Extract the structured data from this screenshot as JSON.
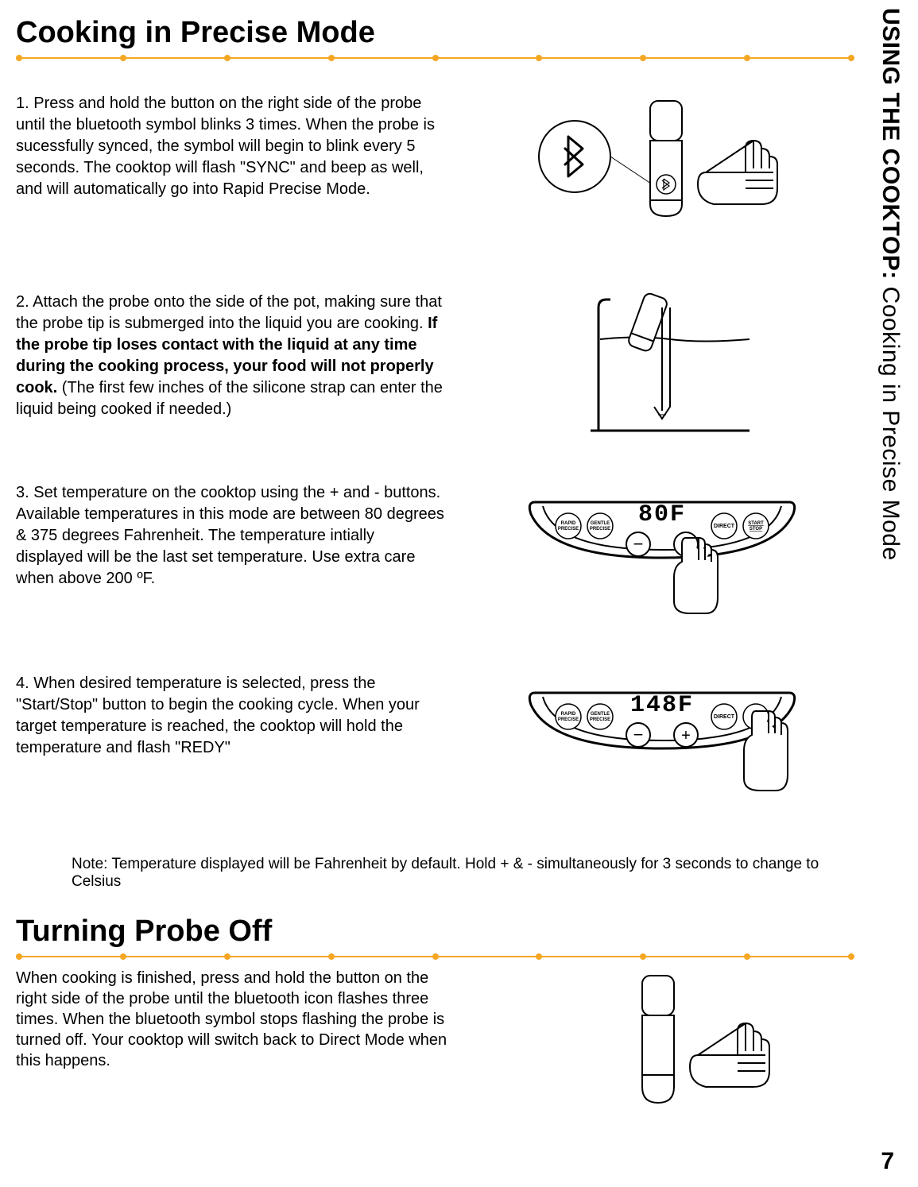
{
  "side_title_bold": "USING THE COOKTOP:",
  "side_title_rest": " Cooking in Precise Mode",
  "heading1": "Cooking in Precise Mode",
  "rule": {
    "color": "#f5a623",
    "dot_count": 9
  },
  "steps": [
    {
      "text_plain_before": "1. Press and hold the button on the right side of the probe until the bluetooth symbol blinks 3 times. When the probe is sucessfully synced, the symbol will begin to blink every 5 seconds. The cooktop will flash \"SYNC\" and beep as well, and will automatically go into Rapid Precise Mode.",
      "bold": "",
      "text_plain_after": ""
    },
    {
      "text_plain_before": "2.  Attach the probe onto the side of the pot, making sure that the probe tip is submerged into the liquid you are cooking. ",
      "bold": "If the probe tip loses contact with the liquid at any time during the cooking process, your food will not properly cook.",
      "text_plain_after": " (The first few inches of the silicone strap can enter the liquid being cooked if needed.)"
    },
    {
      "text_plain_before": "3.  Set temperature on the cooktop using the + and - buttons. Available temperatures in this mode are between 80 degrees & 375 degrees Fahrenheit. The temperature intially displayed will be the last set temperature. Use extra care when above 200 ºF.",
      "bold": "",
      "text_plain_after": ""
    },
    {
      "text_plain_before": "4. When desired temperature is selected, press the \"Start/Stop\" button to begin the cooking cycle. When your target temperature is reached, the cooktop will hold the temperature and flash \"REDY\"",
      "bold": "",
      "text_plain_after": ""
    }
  ],
  "note": "Note: Temperature displayed will be Fahrenheit by default. Hold + & - simultaneously for 3 seconds to change to Celsius",
  "heading2": "Turning Probe Off",
  "turning_off_text": "When cooking is finished, press and hold the button on the right side of the probe until the bluetooth icon flashes three times.  When the bluetooth symbol stops flashing the probe is turned off. Your cooktop will switch back to Direct Mode when this happens.",
  "panel_labels": {
    "rapid": "RAPID PRECISE",
    "gentle": "GENTLE PRECISE",
    "direct": "DIRECT",
    "startstop": "START STOP",
    "minus": "−",
    "plus": "+"
  },
  "panel3_temp": "80F",
  "panel4_temp": "148F",
  "page_number": "7"
}
